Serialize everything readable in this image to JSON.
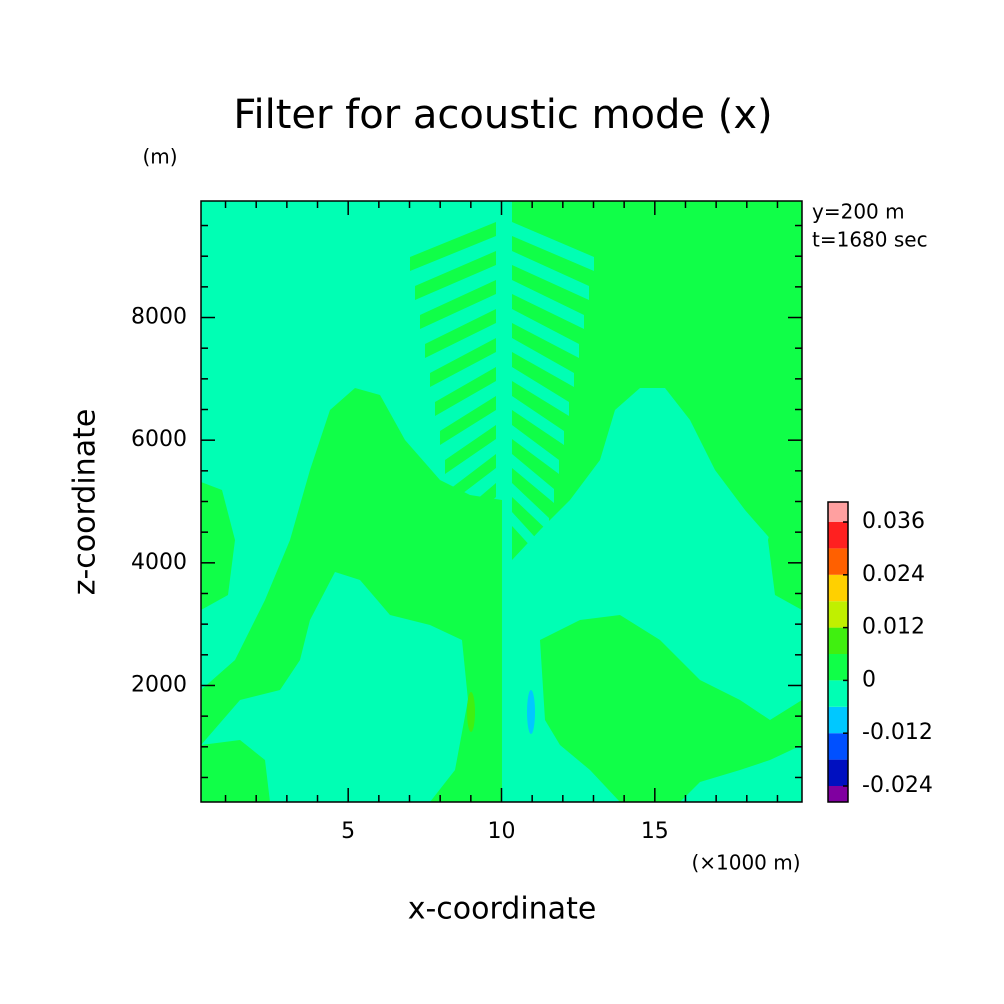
{
  "chart_data": {
    "type": "contour",
    "title": "Filter for acoustic mode (x)",
    "x_label": "x-coordinate",
    "y_label": "z-coordinate",
    "x_unit": "(×1000 m)",
    "y_unit": "(m)",
    "annotations": [
      "y=200 m",
      "t=1680 sec"
    ],
    "xlim": [
      0.2,
      19.8
    ],
    "ylim": [
      100,
      9900
    ],
    "xticks": [
      5,
      10,
      15
    ],
    "yticks": [
      2000,
      4000,
      6000,
      8000
    ],
    "xminorticks": [
      1,
      2,
      3,
      4,
      6,
      7,
      8,
      9,
      11,
      12,
      13,
      14,
      16,
      17,
      18,
      19
    ],
    "yminorticks": [
      500,
      1000,
      1500,
      2500,
      3000,
      3500,
      4500,
      5000,
      5500,
      6500,
      7000,
      7500,
      8500,
      9000,
      9500
    ],
    "colorbar": {
      "levels": [
        -0.024,
        -0.018,
        -0.012,
        -0.006,
        0,
        0.006,
        0.012,
        0.018,
        0.024,
        0.03,
        0.036
      ],
      "colors": [
        "#8000a0",
        "#0010c0",
        "#0050ff",
        "#00c8ff",
        "#00ffb4",
        "#10ff48",
        "#40f010",
        "#c0f000",
        "#ffd000",
        "#ff6000",
        "#ff2020",
        "#ffa0a0"
      ],
      "ticks": [
        -0.024,
        -0.012,
        0,
        0.012,
        0.024,
        0.036
      ]
    }
  }
}
